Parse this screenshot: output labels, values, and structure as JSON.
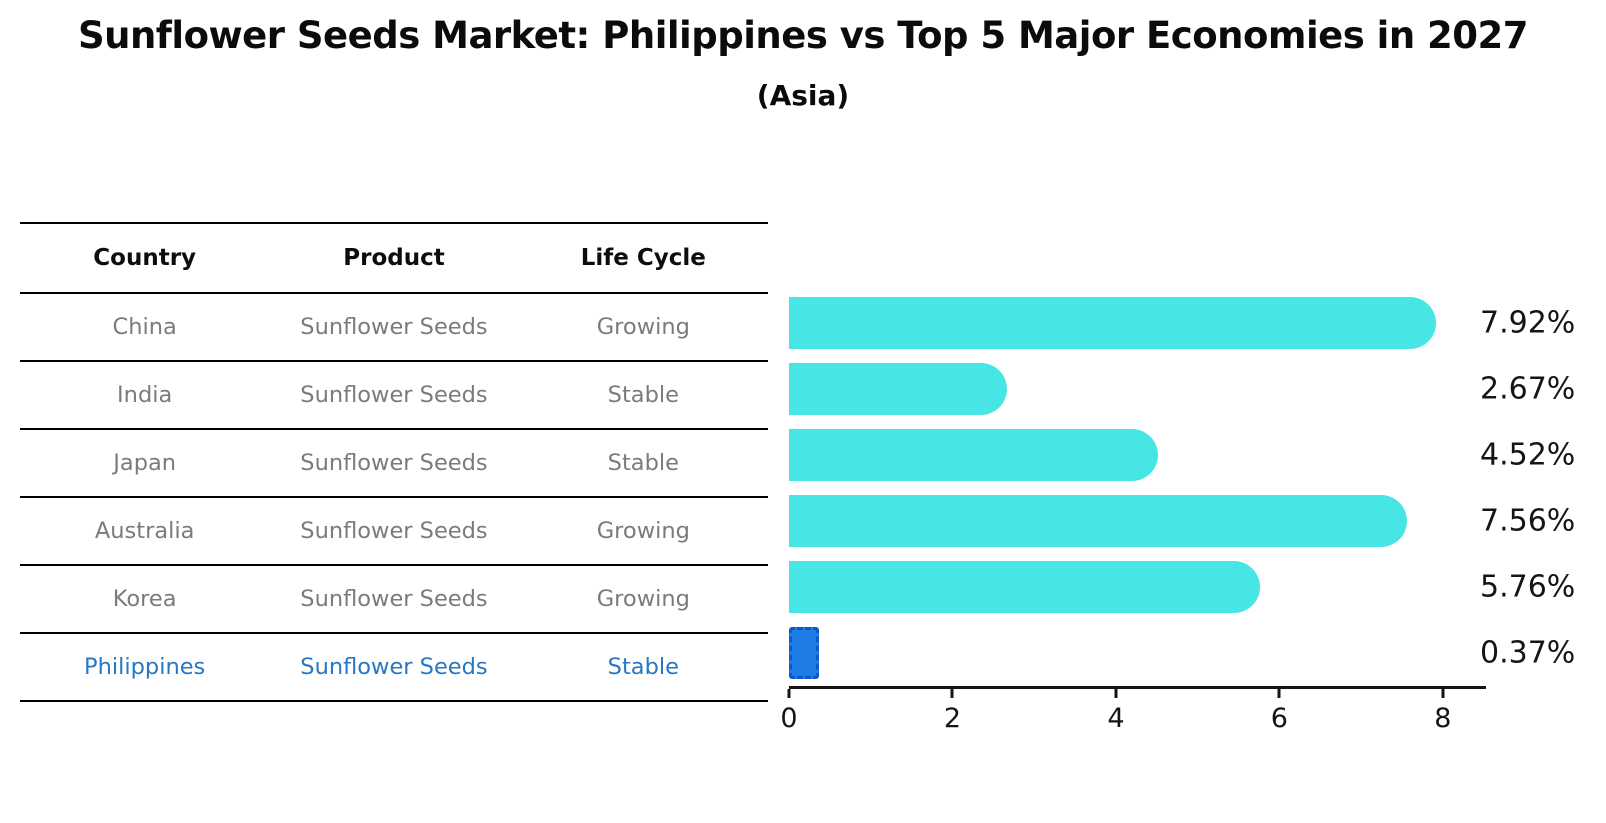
{
  "header": {
    "title": "Sunflower Seeds Market: Philippines vs Top 5 Major Economies in 2027",
    "subtitle": "(Asia)"
  },
  "table": {
    "columns": [
      "Country",
      "Product",
      "Life Cycle"
    ],
    "rows": [
      {
        "country": "China",
        "product": "Sunflower Seeds",
        "life_cycle": "Growing",
        "highlight": false
      },
      {
        "country": "India",
        "product": "Sunflower Seeds",
        "life_cycle": "Stable",
        "highlight": false
      },
      {
        "country": "Japan",
        "product": "Sunflower Seeds",
        "life_cycle": "Stable",
        "highlight": false
      },
      {
        "country": "Australia",
        "product": "Sunflower Seeds",
        "life_cycle": "Growing",
        "highlight": false
      },
      {
        "country": "Korea",
        "product": "Sunflower Seeds",
        "life_cycle": "Growing",
        "highlight": false
      },
      {
        "country": "Philippines",
        "product": "Sunflower Seeds",
        "life_cycle": "Stable",
        "highlight": true
      }
    ]
  },
  "chart_data": {
    "type": "bar",
    "orientation": "horizontal",
    "title": "Sunflower Seeds Market: Philippines vs Top 5 Major Economies in 2027",
    "subtitle": "(Asia)",
    "categories": [
      "China",
      "India",
      "Japan",
      "Australia",
      "Korea",
      "Philippines"
    ],
    "values": [
      7.92,
      2.67,
      4.52,
      7.56,
      5.76,
      0.37
    ],
    "value_labels": [
      "7.92%",
      "2.67%",
      "4.52%",
      "7.56%",
      "5.76%",
      "0.37%"
    ],
    "xlabel": "",
    "ylabel": "",
    "x_ticks": [
      0,
      2,
      4,
      6,
      8
    ],
    "xlim": [
      0,
      8.32
    ],
    "grid": false,
    "legend": "none",
    "highlight_index": 5,
    "bar_color": "#48e5e5",
    "highlight_fill": "#1e7de4",
    "highlight_border": "#0e57cf",
    "highlight_text": "#2777c2"
  }
}
